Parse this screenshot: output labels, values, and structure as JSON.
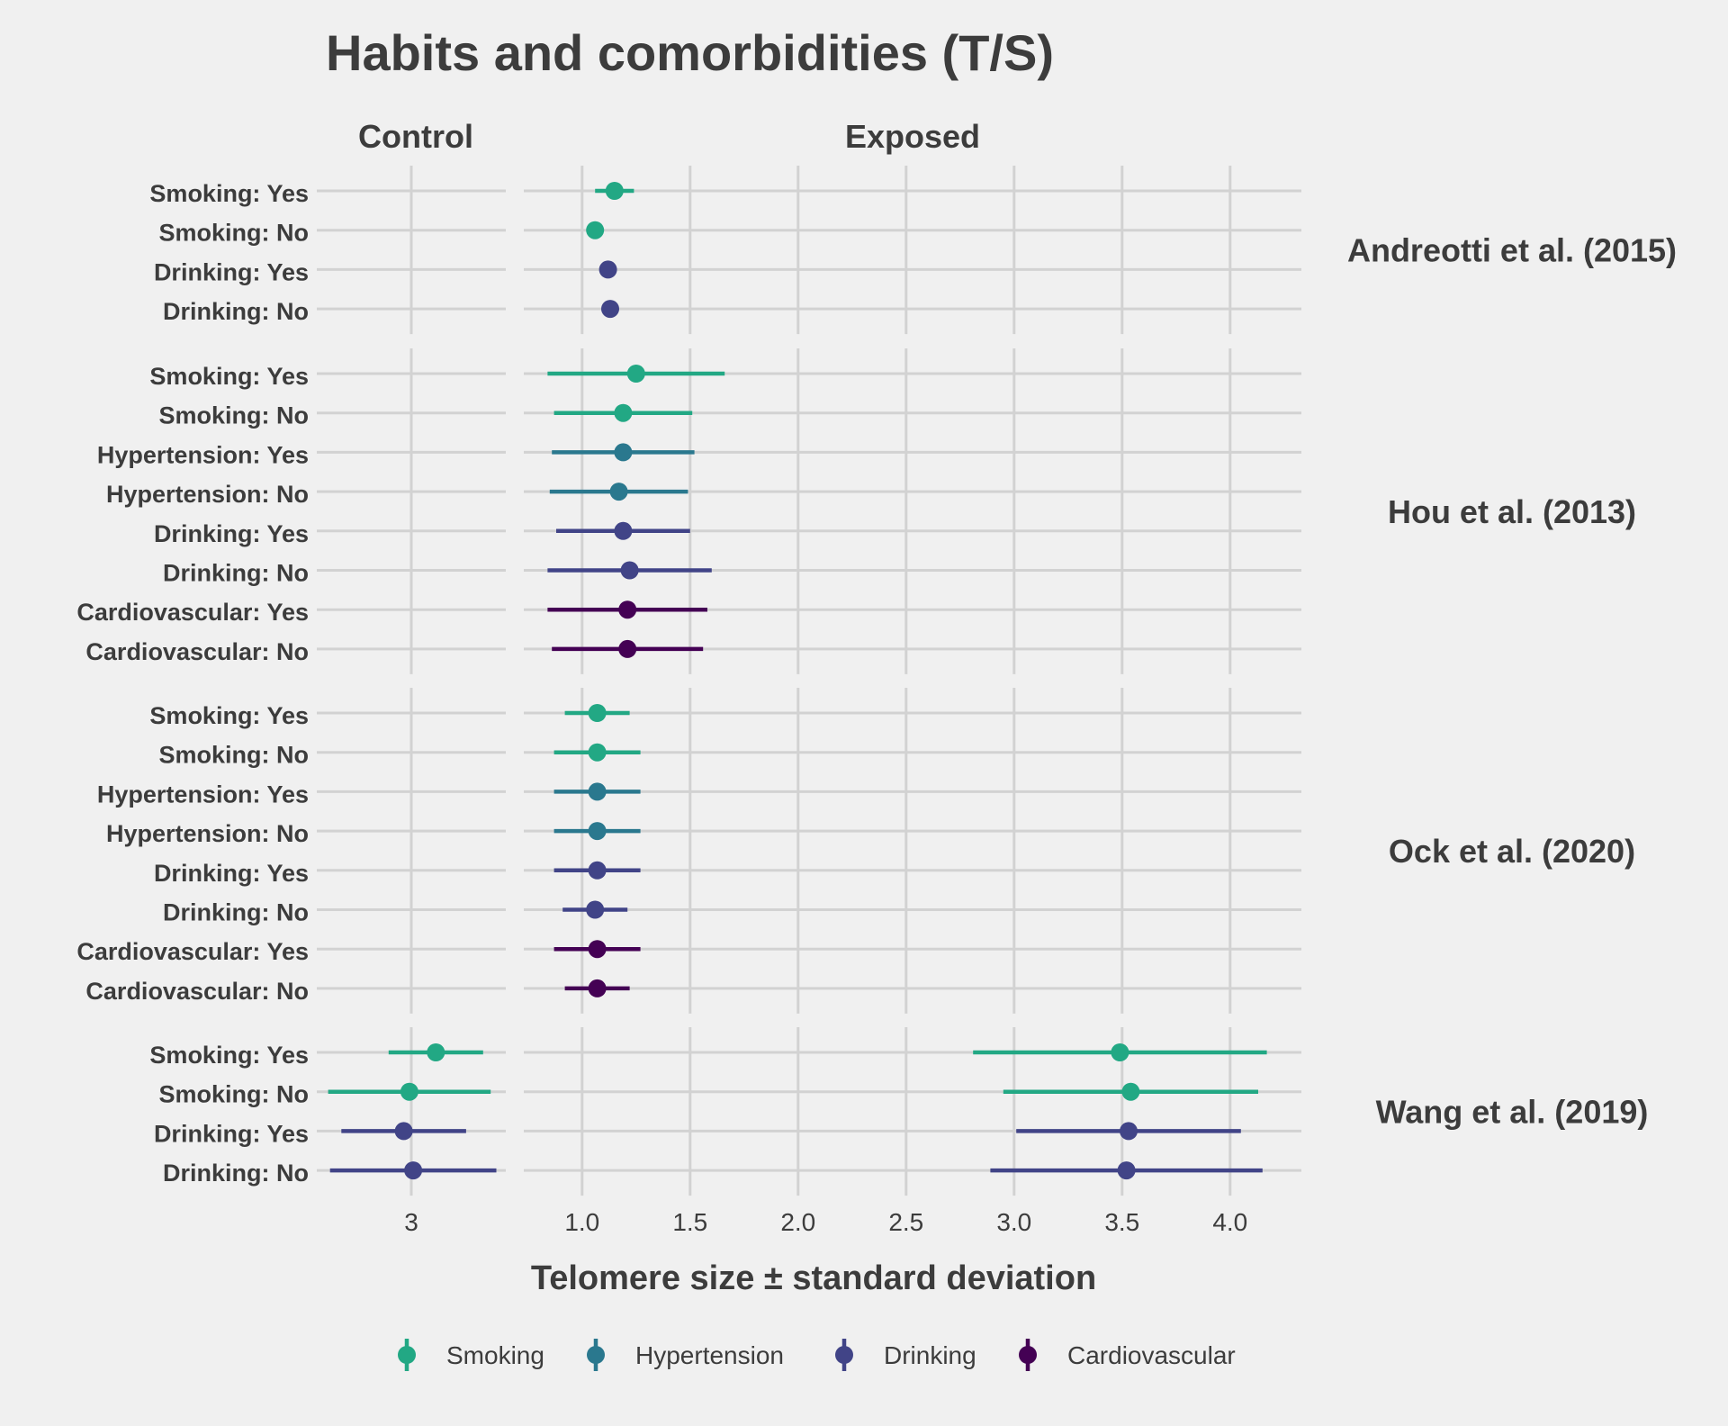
{
  "chart_data": {
    "type": "dot-errorbar",
    "title": "Habits and comorbidities (T/S)",
    "xlabel": "Telomere size ± standard deviation",
    "facets_x": [
      "Control",
      "Exposed"
    ],
    "xlim": {
      "Control": [
        2.5,
        3.5
      ],
      "Exposed": [
        0.73,
        4.33
      ]
    },
    "xticks": {
      "Control": [
        "3"
      ],
      "Exposed": [
        "1.0",
        "1.5",
        "2.0",
        "2.5",
        "3.0",
        "3.5",
        "4.0"
      ]
    },
    "legend_position": "bottom",
    "legend": [
      {
        "name": "Smoking",
        "color": "#22a884"
      },
      {
        "name": "Hypertension",
        "color": "#2a788e"
      },
      {
        "name": "Drinking",
        "color": "#414487"
      },
      {
        "name": "Cardiovascular",
        "color": "#440154"
      }
    ],
    "studies": [
      {
        "name": "Andreotti et al. (2015)",
        "rows": [
          {
            "label": "Smoking: Yes",
            "group": "Smoking",
            "exposed": {
              "mean": 1.15,
              "lo": 1.06,
              "hi": 1.24
            }
          },
          {
            "label": "Smoking: No",
            "group": "Smoking",
            "exposed": {
              "mean": 1.06,
              "lo": 1.06,
              "hi": 1.06
            }
          },
          {
            "label": "Drinking: Yes",
            "group": "Drinking",
            "exposed": {
              "mean": 1.12,
              "lo": 1.12,
              "hi": 1.12
            }
          },
          {
            "label": "Drinking: No",
            "group": "Drinking",
            "exposed": {
              "mean": 1.13,
              "lo": 1.13,
              "hi": 1.13
            }
          }
        ]
      },
      {
        "name": "Hou et al. (2013)",
        "rows": [
          {
            "label": "Smoking: Yes",
            "group": "Smoking",
            "exposed": {
              "mean": 1.25,
              "lo": 0.84,
              "hi": 1.66
            }
          },
          {
            "label": "Smoking: No",
            "group": "Smoking",
            "exposed": {
              "mean": 1.19,
              "lo": 0.87,
              "hi": 1.51
            }
          },
          {
            "label": "Hypertension: Yes",
            "group": "Hypertension",
            "exposed": {
              "mean": 1.19,
              "lo": 0.86,
              "hi": 1.52
            }
          },
          {
            "label": "Hypertension: No",
            "group": "Hypertension",
            "exposed": {
              "mean": 1.17,
              "lo": 0.85,
              "hi": 1.49
            }
          },
          {
            "label": "Drinking: Yes",
            "group": "Drinking",
            "exposed": {
              "mean": 1.19,
              "lo": 0.88,
              "hi": 1.5
            }
          },
          {
            "label": "Drinking: No",
            "group": "Drinking",
            "exposed": {
              "mean": 1.22,
              "lo": 0.84,
              "hi": 1.6
            }
          },
          {
            "label": "Cardiovascular: Yes",
            "group": "Cardiovascular",
            "exposed": {
              "mean": 1.21,
              "lo": 0.84,
              "hi": 1.58
            }
          },
          {
            "label": "Cardiovascular: No",
            "group": "Cardiovascular",
            "exposed": {
              "mean": 1.21,
              "lo": 0.86,
              "hi": 1.56
            }
          }
        ]
      },
      {
        "name": "Ock et al. (2020)",
        "rows": [
          {
            "label": "Smoking: Yes",
            "group": "Smoking",
            "exposed": {
              "mean": 1.07,
              "lo": 0.92,
              "hi": 1.22
            }
          },
          {
            "label": "Smoking: No",
            "group": "Smoking",
            "exposed": {
              "mean": 1.07,
              "lo": 0.87,
              "hi": 1.27
            }
          },
          {
            "label": "Hypertension: Yes",
            "group": "Hypertension",
            "exposed": {
              "mean": 1.07,
              "lo": 0.87,
              "hi": 1.27
            }
          },
          {
            "label": "Hypertension: No",
            "group": "Hypertension",
            "exposed": {
              "mean": 1.07,
              "lo": 0.87,
              "hi": 1.27
            }
          },
          {
            "label": "Drinking: Yes",
            "group": "Drinking",
            "exposed": {
              "mean": 1.07,
              "lo": 0.87,
              "hi": 1.27
            }
          },
          {
            "label": "Drinking: No",
            "group": "Drinking",
            "exposed": {
              "mean": 1.06,
              "lo": 0.91,
              "hi": 1.21
            }
          },
          {
            "label": "Cardiovascular: Yes",
            "group": "Cardiovascular",
            "exposed": {
              "mean": 1.07,
              "lo": 0.87,
              "hi": 1.27
            }
          },
          {
            "label": "Cardiovascular: No",
            "group": "Cardiovascular",
            "exposed": {
              "mean": 1.07,
              "lo": 0.92,
              "hi": 1.22
            }
          }
        ]
      },
      {
        "name": "Wang et al. (2019)",
        "rows": [
          {
            "label": "Smoking: Yes",
            "group": "Smoking",
            "control": {
              "mean": 3.13,
              "lo": 2.88,
              "hi": 3.38
            },
            "exposed": {
              "mean": 3.49,
              "lo": 2.81,
              "hi": 4.17
            }
          },
          {
            "label": "Smoking: No",
            "group": "Smoking",
            "control": {
              "mean": 2.99,
              "lo": 2.56,
              "hi": 3.42
            },
            "exposed": {
              "mean": 3.54,
              "lo": 2.95,
              "hi": 4.13
            }
          },
          {
            "label": "Drinking: Yes",
            "group": "Drinking",
            "control": {
              "mean": 2.96,
              "lo": 2.63,
              "hi": 3.29
            },
            "exposed": {
              "mean": 3.53,
              "lo": 3.01,
              "hi": 4.05
            }
          },
          {
            "label": "Drinking: No",
            "group": "Drinking",
            "control": {
              "mean": 3.01,
              "lo": 2.57,
              "hi": 3.45
            },
            "exposed": {
              "mean": 3.52,
              "lo": 2.89,
              "hi": 4.15
            }
          }
        ]
      }
    ]
  }
}
